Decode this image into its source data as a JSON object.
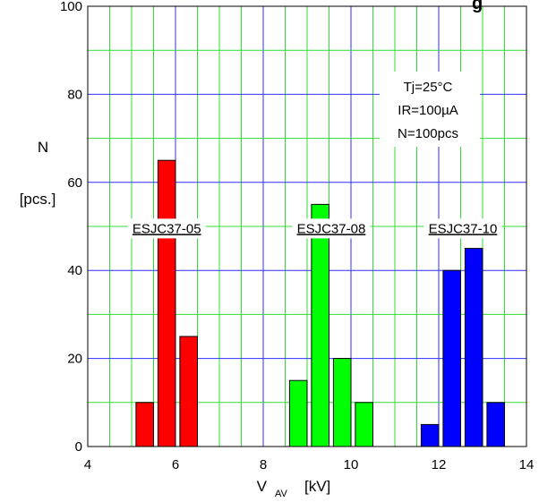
{
  "chart_data": {
    "type": "bar",
    "title": "",
    "title_partial": "g",
    "xlabel_main": "V",
    "xlabel_sub": "AV",
    "xlabel_unit": "[kV]",
    "ylabel_main": "N",
    "ylabel_unit": "[pcs.]",
    "xlim": [
      4,
      14
    ],
    "ylim": [
      0,
      100
    ],
    "x_ticks": [
      "4",
      "6",
      "8",
      "10",
      "12",
      "14"
    ],
    "y_ticks": [
      "0",
      "20",
      "40",
      "60",
      "80",
      "100"
    ],
    "grid": true,
    "bar_width_kv": 0.4,
    "annotations": [
      "Tj=25°C",
      "IR=100µA",
      "N=100pcs"
    ],
    "series": [
      {
        "name": "ESJC37-05",
        "color": "#ff0000",
        "x": [
          5.3,
          5.8,
          6.3
        ],
        "values": [
          10,
          65,
          25
        ]
      },
      {
        "name": "ESJC37-08",
        "color": "#00ff00",
        "x": [
          8.8,
          9.3,
          9.8,
          10.3
        ],
        "values": [
          15,
          55,
          20,
          10
        ]
      },
      {
        "name": "ESJC37-10",
        "color": "#0000ff",
        "x": [
          11.8,
          12.3,
          12.8,
          13.3
        ],
        "values": [
          5,
          40,
          45,
          10
        ]
      }
    ]
  }
}
